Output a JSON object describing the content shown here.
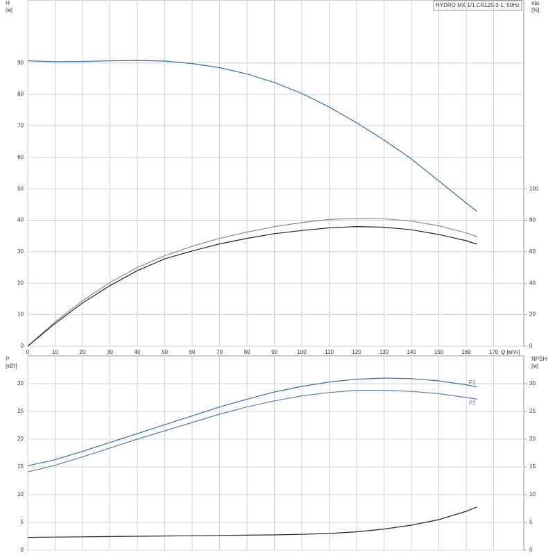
{
  "chart_data": [
    {
      "type": "line",
      "title": "HYDRO MX 1/1 CR125-3-1, 50Hz",
      "ylabel": "H",
      "yunit": "[м]",
      "y2label": "eta",
      "y2unit": "[%]",
      "xlabel": "Q [м³/ч]",
      "x": [
        0,
        10,
        20,
        30,
        40,
        50,
        60,
        70,
        80,
        90,
        100,
        110,
        120,
        130,
        140,
        150,
        160,
        164
      ],
      "xlim": [
        0,
        181
      ],
      "xticks": [
        0,
        10,
        20,
        30,
        40,
        50,
        60,
        70,
        80,
        90,
        100,
        110,
        120,
        130,
        140,
        150,
        160,
        170
      ],
      "ylim": [
        0,
        110
      ],
      "yticks": [
        0,
        10,
        20,
        30,
        40,
        50,
        60,
        70,
        80,
        90
      ],
      "y2lim": [
        0,
        220
      ],
      "y2ticks": [
        0,
        20,
        40,
        60,
        80,
        100
      ],
      "grid": true,
      "series": [
        {
          "color": "#3a6ea5",
          "values": [
            90.7,
            90.4,
            90.5,
            90.7,
            90.8,
            90.6,
            89.8,
            88.5,
            86.5,
            83.8,
            80.3,
            76,
            71,
            65.5,
            59.5,
            52.5,
            45.5,
            42.8
          ]
        },
        {
          "color": "#8a8a8a",
          "axis": "y2",
          "values": [
            0,
            15.5,
            29,
            40.5,
            50,
            57.5,
            63.5,
            68.5,
            72.5,
            76,
            78.5,
            80.5,
            81.3,
            81,
            79.5,
            76.5,
            72,
            69.6
          ]
        },
        {
          "color": "#222222",
          "axis": "y2",
          "values": [
            0,
            14.5,
            27.5,
            38.5,
            48,
            55.5,
            60.5,
            65,
            68.5,
            71.5,
            73.5,
            75.2,
            76,
            75.6,
            74,
            71,
            67,
            64.8
          ]
        }
      ]
    },
    {
      "type": "line",
      "ylabel": "P",
      "yunit": "[кВт]",
      "y2label": "NPSH",
      "y2unit": "[м]",
      "x": [
        0,
        10,
        20,
        30,
        40,
        50,
        60,
        70,
        80,
        90,
        100,
        110,
        120,
        130,
        140,
        150,
        160,
        164
      ],
      "xlim": [
        0,
        181
      ],
      "xticks": [
        0,
        10,
        20,
        30,
        40,
        50,
        60,
        70,
        80,
        90,
        100,
        110,
        120,
        130,
        140,
        150,
        160,
        170
      ],
      "ylim": [
        0,
        35
      ],
      "yticks": [
        0,
        5,
        10,
        15,
        20,
        25,
        30
      ],
      "y2lim": [
        0,
        35
      ],
      "y2ticks": [
        0,
        5,
        10,
        15,
        20,
        25,
        30
      ],
      "grid": true,
      "series": [
        {
          "name": "P1",
          "color": "#3a6ea5",
          "values": [
            15.2,
            16.3,
            17.8,
            19.4,
            21,
            22.6,
            24.2,
            25.8,
            27.2,
            28.5,
            29.5,
            30.3,
            30.8,
            31,
            30.9,
            30.5,
            29.8,
            29.4
          ]
        },
        {
          "name": "P2",
          "color": "#5a7fb0",
          "values": [
            14.1,
            15.3,
            16.8,
            18.4,
            20,
            21.5,
            23,
            24.5,
            25.8,
            26.9,
            27.8,
            28.4,
            28.8,
            28.8,
            28.6,
            28.2,
            27.5,
            27.2
          ]
        },
        {
          "color": "#222222",
          "axis": "y2",
          "values": [
            2.3,
            2.35,
            2.4,
            2.45,
            2.5,
            2.55,
            2.6,
            2.65,
            2.7,
            2.75,
            2.85,
            3.0,
            3.3,
            3.8,
            4.5,
            5.5,
            7.0,
            7.8
          ]
        }
      ]
    }
  ]
}
